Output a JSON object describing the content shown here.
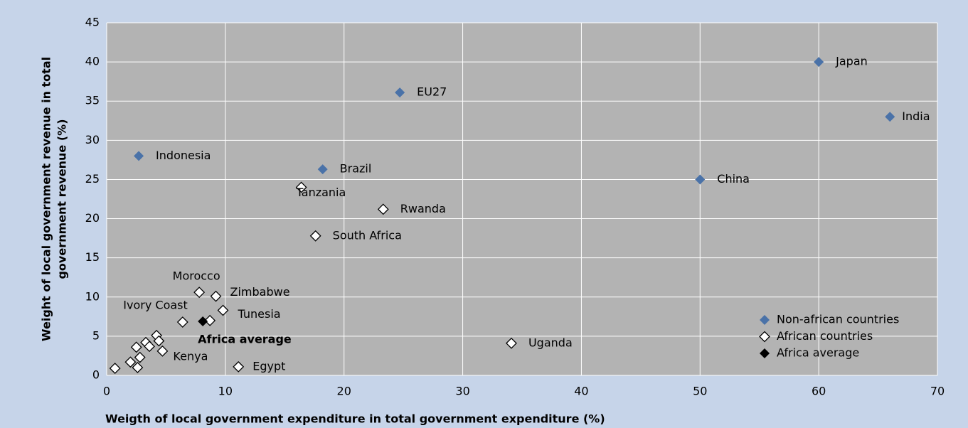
{
  "chart_data": {
    "type": "scatter",
    "xlabel": "Weigth of local government expenditure in total government expenditure (%)",
    "ylabel": [
      "Weight of local government revenue  in total",
      "government revenue (%)"
    ],
    "xlim": [
      0,
      70
    ],
    "xticks": [
      0,
      10,
      20,
      30,
      40,
      50,
      60,
      70
    ],
    "ylim": [
      0,
      45
    ],
    "yticks": [
      0,
      5,
      10,
      15,
      20,
      25,
      30,
      35,
      40,
      45
    ],
    "grid": true,
    "legend": "lower right",
    "series": [
      {
        "name": "Non-african countries",
        "color": "#4a72a8",
        "marker": "filled",
        "labels": [
          "Indonesia",
          "Brazil",
          "EU27",
          "China",
          "Japan",
          "India"
        ],
        "x": [
          2.7,
          18.2,
          24.7,
          50,
          60,
          66
        ],
        "values": [
          28,
          26.3,
          36.1,
          25,
          40,
          33
        ]
      },
      {
        "name": "African countries",
        "color": "#ffffff",
        "marker": "open",
        "labels": [
          "Tanzania",
          "Rwanda",
          "South Africa",
          "Morocco",
          "Zimbabwe",
          "Tunesia",
          "Ivory Coast",
          null,
          "Uganda",
          "Egypt",
          "Kenya",
          null,
          null,
          null,
          null,
          null,
          null,
          null,
          null,
          null
        ],
        "x": [
          16.4,
          23.3,
          17.6,
          7.8,
          9.2,
          9.8,
          6.4,
          8.7,
          34.1,
          11.1,
          4.7,
          0.7,
          2.0,
          2.6,
          2.8,
          2.5,
          3.3,
          3.6,
          4.2,
          4.4
        ],
        "values": [
          24,
          21.2,
          17.8,
          10.6,
          10.1,
          8.3,
          6.8,
          7.0,
          4.1,
          1.1,
          3.1,
          0.9,
          1.7,
          1.0,
          2.3,
          3.6,
          4.2,
          3.7,
          5.1,
          4.4
        ]
      },
      {
        "name": "Africa average",
        "color": "#000000",
        "marker": "filled",
        "labels": [
          "Africa average"
        ],
        "x": [
          8.1
        ],
        "values": [
          6.9
        ]
      }
    ]
  }
}
